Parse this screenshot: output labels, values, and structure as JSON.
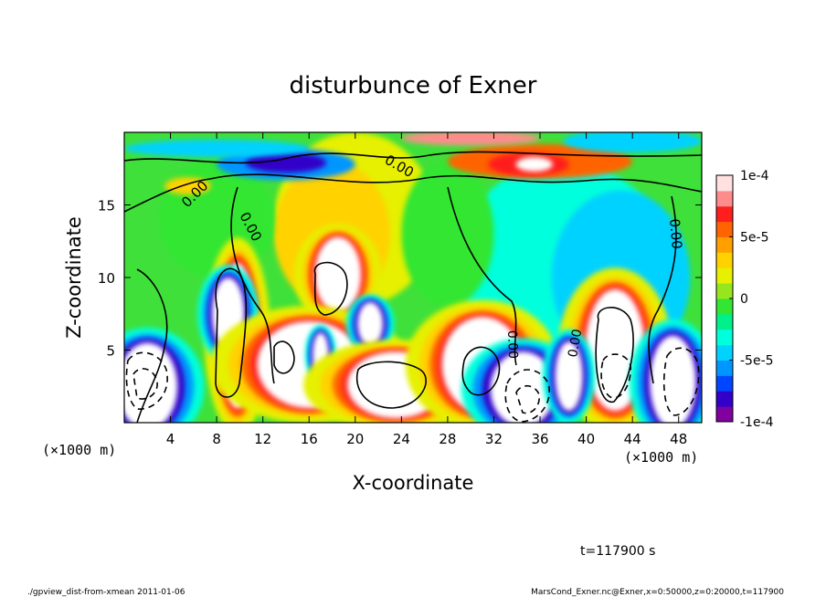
{
  "chart_data": {
    "type": "heatmap",
    "title": "disturbunce of Exner",
    "xlabel": "X-coordinate",
    "ylabel": "Z-coordinate",
    "x_unit_label": "(×1000 m)",
    "z_unit_label": "(×1000 m)",
    "xlim": [
      0,
      50
    ],
    "ylim": [
      0,
      20
    ],
    "x_ticks": [
      4,
      8,
      12,
      16,
      20,
      24,
      28,
      32,
      36,
      40,
      44,
      48
    ],
    "y_ticks": [
      5,
      10,
      15
    ],
    "colorbar": {
      "min": -0.0001,
      "max": 0.0001,
      "tick_labels": [
        "1e-4",
        "5e-5",
        "0",
        "-5e-5",
        "-1e-4"
      ],
      "tick_values": [
        0.0001,
        5e-05,
        0,
        -5e-05,
        -0.0001
      ],
      "colors": [
        "#8000a0",
        "#3200c8",
        "#0046ff",
        "#0096ff",
        "#00d2ff",
        "#00ffdc",
        "#00f08c",
        "#32e632",
        "#96e61e",
        "#e6f000",
        "#ffd200",
        "#ffa000",
        "#ff6400",
        "#ff1e1e",
        "#ff8c8c",
        "#ffe1e1"
      ]
    },
    "contour_labels": [
      "0.00",
      "0.00",
      "0.00",
      "0.00",
      "0.00",
      "0.00",
      "0.00"
    ],
    "time_label": "t=117900 s",
    "footer_left": "./gpview_dist-from-xmean  2011-01-06",
    "footer_right": "MarsCond_Exner.nc@Exner,x=0:50000,z=0:20000,t=117900"
  }
}
